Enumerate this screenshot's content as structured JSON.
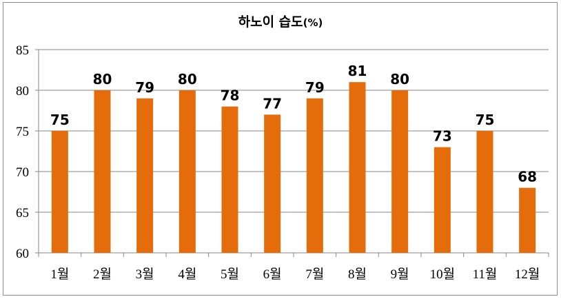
{
  "chart_data": {
    "type": "bar",
    "title": "하노이 습도",
    "title_unit": "(%)",
    "categories": [
      "1월",
      "2월",
      "3월",
      "4월",
      "5월",
      "6월",
      "7월",
      "8월",
      "9월",
      "10월",
      "11월",
      "12월"
    ],
    "values": [
      75,
      80,
      79,
      80,
      78,
      77,
      79,
      81,
      80,
      73,
      75,
      68
    ],
    "ylim": [
      60,
      85
    ],
    "yticks": [
      60,
      65,
      70,
      75,
      80,
      85
    ],
    "grid": true,
    "legend": "none",
    "data_labels": true,
    "bar_color": "#E46C0A"
  }
}
